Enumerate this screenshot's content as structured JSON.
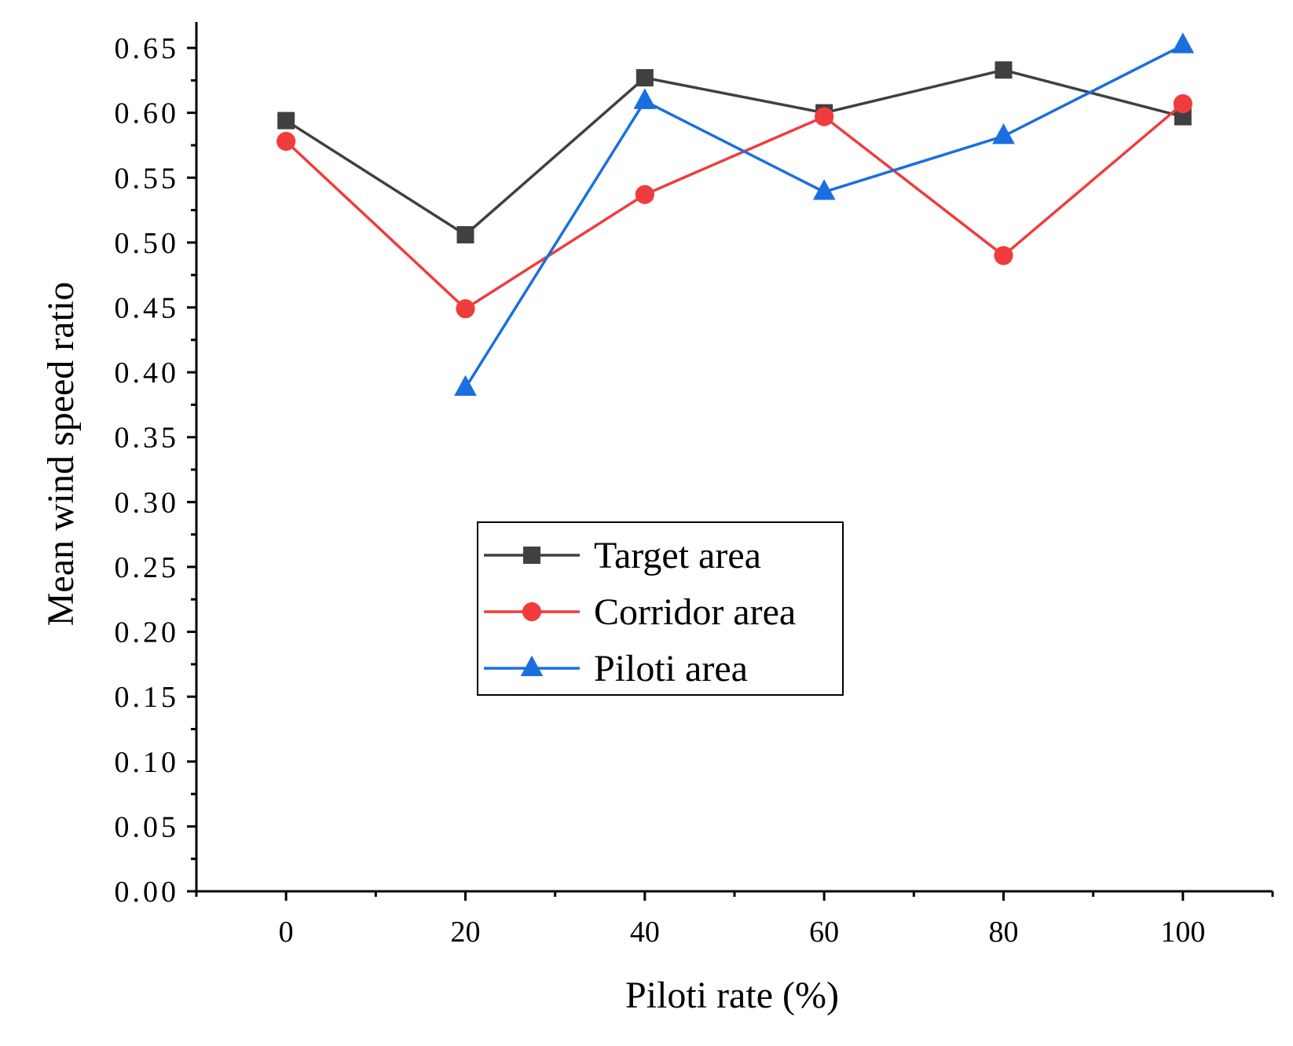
{
  "chart_data": {
    "type": "line",
    "title": "",
    "xlabel": "Piloti rate (%)",
    "ylabel": "Mean wind speed ratio",
    "x": [
      0,
      20,
      40,
      60,
      80,
      100
    ],
    "xlim": [
      -10,
      110
    ],
    "ylim": [
      0,
      0.67
    ],
    "xticks": [
      0,
      20,
      40,
      60,
      80,
      100
    ],
    "xtick_labels": [
      "0",
      "20",
      "40",
      "60",
      "80",
      "100"
    ],
    "yticks": [
      0,
      0.05,
      0.1,
      0.15,
      0.2,
      0.25,
      0.3,
      0.35,
      0.4,
      0.45,
      0.5,
      0.55,
      0.6,
      0.65
    ],
    "ytick_labels": [
      "0.00",
      "0.05",
      "0.10",
      "0.15",
      "0.20",
      "0.25",
      "0.30",
      "0.35",
      "0.40",
      "0.45",
      "0.50",
      "0.55",
      "0.60",
      "0.65"
    ],
    "grid": false,
    "legend_position": "center-left",
    "series": [
      {
        "name": "Target area",
        "color": "#404040",
        "marker": "square",
        "x": [
          0,
          20,
          40,
          60,
          80,
          100
        ],
        "values": [
          0.594,
          0.506,
          0.627,
          0.6,
          0.633,
          0.597
        ]
      },
      {
        "name": "Corridor area",
        "color": "#f03c3c",
        "marker": "circle",
        "x": [
          0,
          20,
          40,
          60,
          80,
          100
        ],
        "values": [
          0.578,
          0.449,
          0.537,
          0.597,
          0.49,
          0.607
        ]
      },
      {
        "name": "Piloti area",
        "color": "#1a6fe0",
        "marker": "triangle",
        "x": [
          20,
          40,
          60,
          80,
          100
        ],
        "values": [
          0.388,
          0.609,
          0.539,
          0.582,
          0.652
        ]
      }
    ]
  }
}
